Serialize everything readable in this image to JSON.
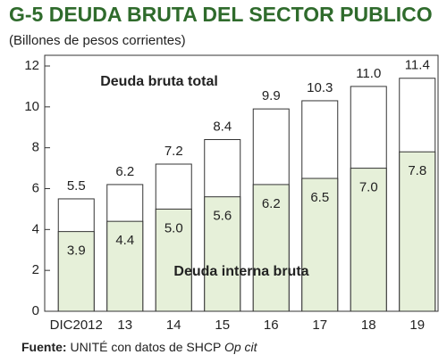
{
  "chart_data": {
    "type": "bar",
    "title": "G-5  DEUDA BRUTA DEL SECTOR PUBLICO",
    "subtitle": "(Billones de pesos corrientes)",
    "categories": [
      "DIC2012",
      "13",
      "14",
      "15",
      "16",
      "17",
      "18",
      "19"
    ],
    "series": [
      {
        "name": "Deuda bruta total",
        "color": "#ffffff",
        "values": [
          5.5,
          6.2,
          7.2,
          8.4,
          9.9,
          10.3,
          11.0,
          11.4
        ],
        "value_labels": [
          "5.5",
          "6.2",
          "7.2",
          "8.4",
          "9.9",
          "10.3",
          "11.0",
          "11.4"
        ]
      },
      {
        "name": "Deuda interna bruta",
        "color": "#e6f0d9",
        "values": [
          3.9,
          4.4,
          5.0,
          5.6,
          6.2,
          6.5,
          7.0,
          7.8
        ],
        "value_labels": [
          "3.9",
          "4.4",
          "5.0",
          "5.6",
          "6.2",
          "6.5",
          "7.0",
          "7.8"
        ]
      }
    ],
    "ylim": [
      0,
      12
    ],
    "yticks": [
      0,
      2,
      4,
      6,
      8,
      10,
      12
    ],
    "source": {
      "label": "Fuente:",
      "text": "UNITÉ con datos de SHCP",
      "ref": "Op cit"
    }
  }
}
